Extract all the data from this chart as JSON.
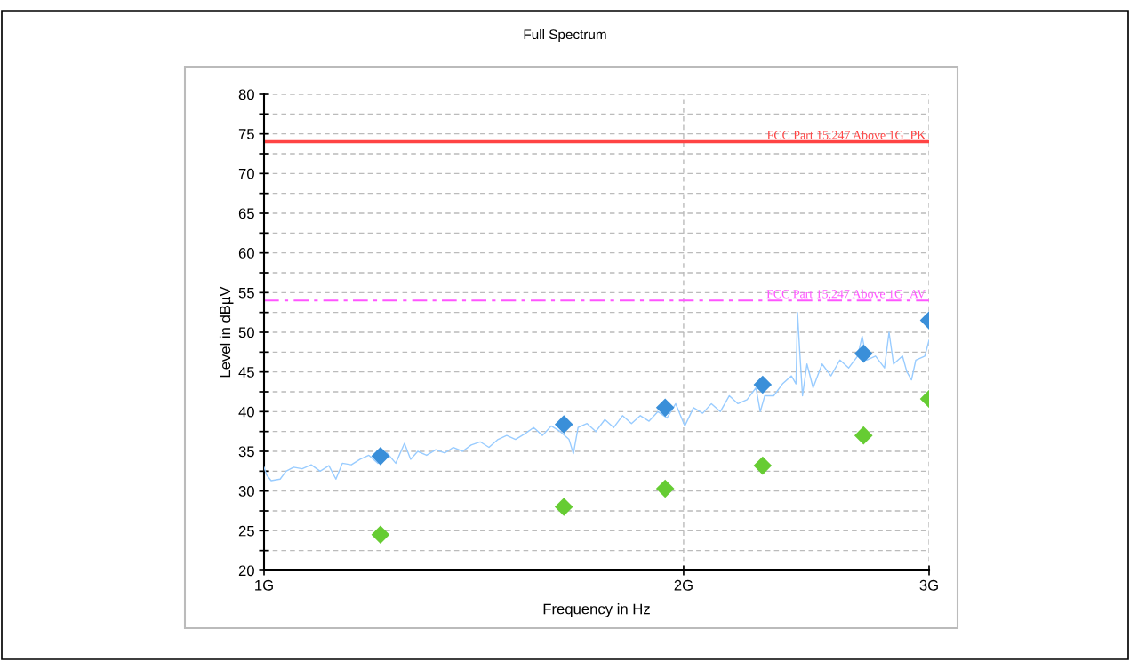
{
  "chart_data": {
    "type": "line",
    "title": "Full Spectrum",
    "xlabel": "Frequency in Hz",
    "ylabel": "Level in dBµV",
    "log": "x",
    "grid": true,
    "xlim": [
      1,
      3
    ],
    "xticks": [
      {
        "value": 1,
        "label": "1G"
      },
      {
        "value": 2,
        "label": "2G"
      },
      {
        "value": 3,
        "label": "3G"
      }
    ],
    "ylim": [
      20,
      80
    ],
    "yticks": [
      20,
      {
        "value": 22.5,
        "label": null
      },
      25,
      {
        "value": 27.5,
        "label": null
      },
      30,
      {
        "value": 32.5,
        "label": null
      },
      35,
      {
        "value": 37.5,
        "label": null
      },
      40,
      {
        "value": 42.5,
        "label": null
      },
      45,
      {
        "value": 47.5,
        "label": null
      },
      50,
      {
        "value": 52.5,
        "label": null
      },
      55,
      {
        "value": 57.5,
        "label": null
      },
      60,
      {
        "value": 62.5,
        "label": null
      },
      65,
      {
        "value": 67.5,
        "label": null
      },
      70,
      {
        "value": 72.5,
        "label": null
      },
      75,
      {
        "value": 77.5,
        "label": null
      },
      80
    ],
    "series": [
      {
        "color": "#99ccff",
        "marker": "none",
        "line_style": "solid",
        "x": [
          1.0,
          1.0044,
          1.0118,
          1.027,
          1.037,
          1.05,
          1.065,
          1.081,
          1.097,
          1.113,
          1.126,
          1.138,
          1.155,
          1.172,
          1.189,
          1.207,
          1.225,
          1.243,
          1.261,
          1.274,
          1.289,
          1.308,
          1.328,
          1.348,
          1.367,
          1.388,
          1.408,
          1.429,
          1.45,
          1.472,
          1.493,
          1.515,
          1.538,
          1.561,
          1.584,
          1.607,
          1.631,
          1.655,
          1.667,
          1.68,
          1.705,
          1.73,
          1.756,
          1.782,
          1.808,
          1.835,
          1.862,
          1.889,
          1.917,
          1.946,
          1.974,
          2.004,
          2.033,
          2.064,
          2.094,
          2.125,
          2.157,
          2.188,
          2.221,
          2.254,
          2.27,
          2.287,
          2.321,
          2.355,
          2.39,
          2.408,
          2.414,
          2.423,
          2.434,
          2.452,
          2.477,
          2.514,
          2.551,
          2.589,
          2.627,
          2.666,
          2.686,
          2.706,
          2.746,
          2.787,
          2.808,
          2.829,
          2.871,
          2.892,
          2.914,
          2.935,
          2.979,
          3.0
        ],
        "values": [
          33,
          32,
          31.3,
          31.5,
          32.5,
          33,
          32.8,
          33.3,
          32.5,
          33.2,
          31.5,
          33.5,
          33.3,
          34,
          34.5,
          33.5,
          34.8,
          33.5,
          36,
          34,
          35,
          34.5,
          35.2,
          34.8,
          35.5,
          35,
          35.8,
          36.2,
          35.5,
          36.5,
          37,
          36.5,
          37.2,
          38,
          37,
          38.2,
          37.5,
          36.5,
          34.7,
          38,
          38.5,
          37.5,
          39,
          38,
          39.5,
          38.5,
          39.5,
          38.8,
          40,
          39.2,
          41,
          38.2,
          40.5,
          39.8,
          41,
          40,
          42,
          41,
          41.5,
          43,
          40,
          42,
          42,
          43.5,
          44.5,
          43.5,
          52.5,
          47.5,
          42,
          46,
          43,
          46,
          44.5,
          46.5,
          45.5,
          47,
          49.5,
          46.5,
          47,
          45.5,
          50,
          46,
          47,
          45,
          44,
          46.5,
          47,
          49
        ]
      },
      {
        "type": "scatter",
        "color": "#3a8fd9",
        "marker": "diamond",
        "x": [
          1.212,
          1.641,
          1.94,
          2.279,
          2.692,
          3.0
        ],
        "values": [
          34.4,
          38.4,
          40.5,
          43.4,
          47.3,
          51.5
        ]
      },
      {
        "type": "scatter",
        "color": "#66cc33",
        "marker": "diamond",
        "x": [
          1.212,
          1.641,
          1.94,
          2.279,
          2.692,
          3.0
        ],
        "values": [
          24.5,
          28.0,
          30.3,
          33.2,
          37.0,
          41.6
        ]
      }
    ],
    "ref_lines": [
      {
        "axis": "y",
        "value": 74,
        "label": "FCC Part 15.247 Above 1G_PK",
        "color": "#ff4444",
        "line_style": "solid"
      },
      {
        "axis": "y",
        "value": 54,
        "label": "FCC Part 15.247 Above 1G_AV",
        "color": "#ff55ff",
        "line_style": "dashed"
      }
    ]
  }
}
